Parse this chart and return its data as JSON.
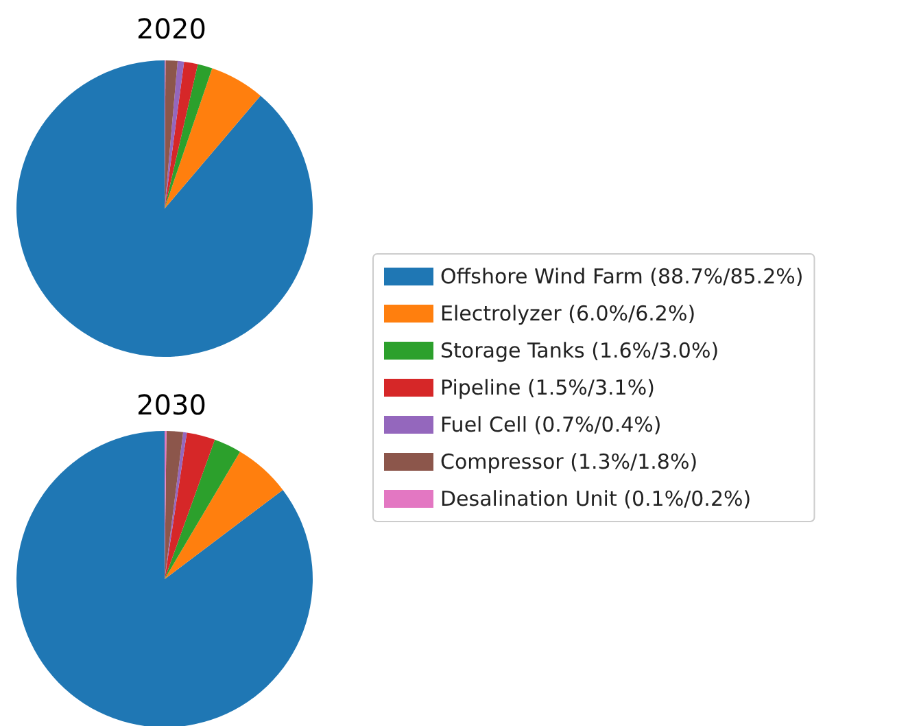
{
  "chart_data": [
    {
      "type": "pie",
      "title": "2020",
      "legend": "right",
      "categories": [
        "Offshore Wind Farm (88.7%/85.2%)",
        "Electrolyzer (6.0%/6.2%)",
        "Storage Tanks (1.6%/3.0%)",
        "Pipeline (1.5%/3.1%)",
        "Fuel Cell (0.7%/0.4%)",
        "Compressor (1.3%/1.8%)",
        "Desalination Unit (0.1%/0.2%)"
      ],
      "values": [
        88.7,
        6.0,
        1.6,
        1.5,
        0.7,
        1.3,
        0.1
      ],
      "colors": [
        "#1f77b4",
        "#ff7f0e",
        "#2ca02c",
        "#d62728",
        "#9467bd",
        "#8c564b",
        "#e377c2"
      ]
    },
    {
      "type": "pie",
      "title": "2030",
      "categories": [
        null,
        null,
        null,
        null,
        null,
        null,
        null
      ],
      "values": [
        85.2,
        6.2,
        3.0,
        3.1,
        0.4,
        1.8,
        0.2
      ],
      "colors": [
        "#1f77b4",
        "#ff7f0e",
        "#2ca02c",
        "#d62728",
        "#9467bd",
        "#8c564b",
        "#e377c2"
      ]
    }
  ]
}
